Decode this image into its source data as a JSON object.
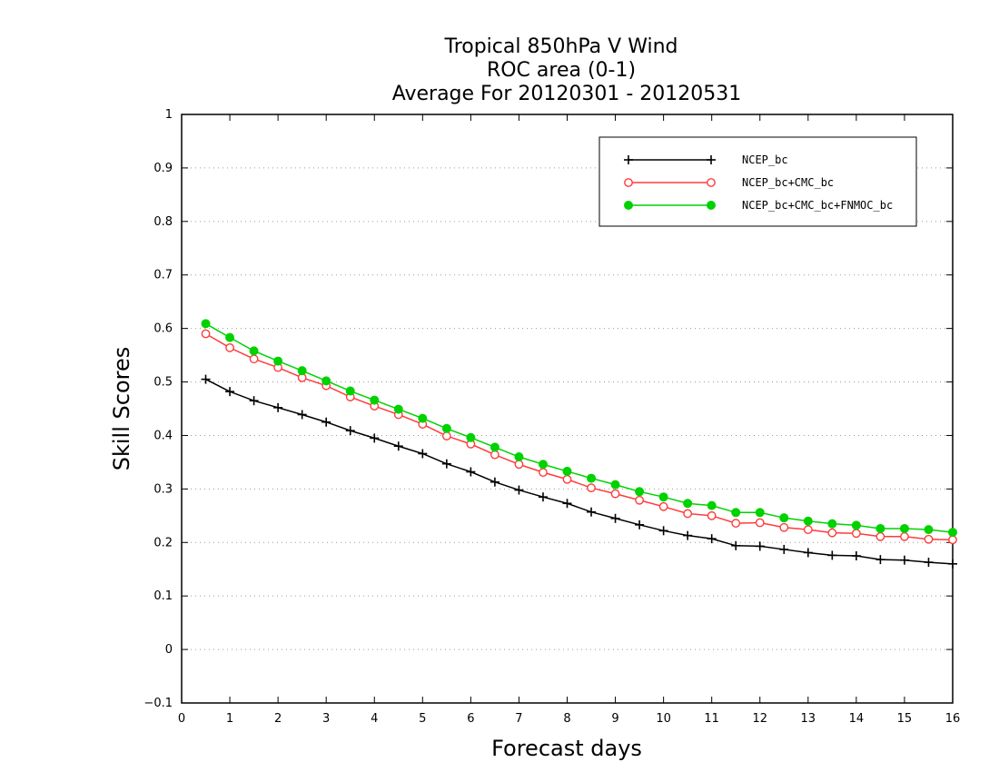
{
  "chart_data": {
    "type": "line",
    "title": [
      "Tropical 850hPa V Wind",
      "ROC area (0-1)",
      "Average For 20120301 - 20120531"
    ],
    "xlabel": "Forecast days",
    "ylabel": "Skill Scores",
    "xlim": [
      0,
      16
    ],
    "ylim": [
      -0.1,
      1
    ],
    "xticks": [
      "0",
      "1",
      "2",
      "3",
      "4",
      "5",
      "6",
      "7",
      "8",
      "9",
      "10",
      "11",
      "12",
      "13",
      "14",
      "15",
      "16"
    ],
    "yticks": [
      "−0.1",
      "0",
      "0.1",
      "0.2",
      "0.3",
      "0.4",
      "0.5",
      "0.6",
      "0.7",
      "0.8",
      "0.9",
      "1"
    ],
    "ytick_values": [
      -0.1,
      0,
      0.1,
      0.2,
      0.3,
      0.4,
      0.5,
      0.6,
      0.7,
      0.8,
      0.9,
      1
    ],
    "grid": "horizontal dotted",
    "legend_position": "top-right",
    "x": [
      0.5,
      1,
      1.5,
      2,
      2.5,
      3,
      3.5,
      4,
      4.5,
      5,
      5.5,
      6,
      6.5,
      7,
      7.5,
      8,
      8.5,
      9,
      9.5,
      10,
      10.5,
      11,
      11.5,
      12,
      12.5,
      13,
      13.5,
      14,
      14.5,
      15,
      15.5,
      16
    ],
    "series": [
      {
        "name": "NCEP_bc",
        "color": "#000000",
        "marker": "plus",
        "values": [
          0.505,
          0.482,
          0.465,
          0.452,
          0.439,
          0.425,
          0.409,
          0.395,
          0.38,
          0.366,
          0.347,
          0.332,
          0.313,
          0.298,
          0.285,
          0.273,
          0.257,
          0.245,
          0.233,
          0.222,
          0.213,
          0.207,
          0.194,
          0.193,
          0.187,
          0.181,
          0.176,
          0.175,
          0.168,
          0.167,
          0.163,
          0.16
        ]
      },
      {
        "name": "NCEP_bc+CMC_bc",
        "color": "#ff3b3b",
        "marker": "open-circle",
        "values": [
          0.59,
          0.564,
          0.543,
          0.527,
          0.508,
          0.493,
          0.472,
          0.455,
          0.439,
          0.421,
          0.399,
          0.384,
          0.364,
          0.346,
          0.331,
          0.318,
          0.302,
          0.291,
          0.279,
          0.267,
          0.254,
          0.25,
          0.236,
          0.237,
          0.228,
          0.224,
          0.218,
          0.217,
          0.211,
          0.211,
          0.206,
          0.205
        ]
      },
      {
        "name": "NCEP_bc+CMC_bc+FNMOC_bc",
        "color": "#00d200",
        "marker": "filled-circle",
        "values": [
          0.609,
          0.583,
          0.558,
          0.539,
          0.521,
          0.502,
          0.483,
          0.466,
          0.449,
          0.432,
          0.413,
          0.396,
          0.378,
          0.36,
          0.346,
          0.333,
          0.32,
          0.308,
          0.295,
          0.285,
          0.273,
          0.269,
          0.256,
          0.256,
          0.246,
          0.24,
          0.235,
          0.232,
          0.226,
          0.226,
          0.224,
          0.219
        ]
      }
    ]
  }
}
